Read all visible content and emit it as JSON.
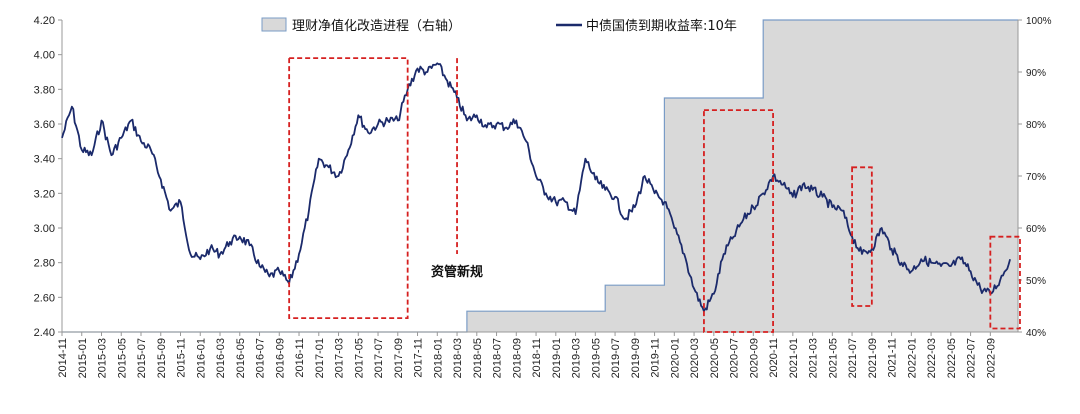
{
  "chart_data": {
    "type": "line",
    "title": "",
    "legend": {
      "placement": "top-center",
      "entries": [
        "理财净值化改造进程（右轴）",
        "中债国债到期收益率:10年"
      ]
    },
    "y_left": {
      "min": 2.4,
      "max": 4.2,
      "ticks": [
        "2.40",
        "2.60",
        "2.80",
        "3.00",
        "3.20",
        "3.40",
        "3.60",
        "3.80",
        "4.00",
        "4.20"
      ]
    },
    "y_right": {
      "min": 40,
      "max": 100,
      "ticks": [
        "40%",
        "50%",
        "60%",
        "70%",
        "80%",
        "90%",
        "100%"
      ]
    },
    "x_ticks": [
      "2014-11",
      "2015-01",
      "2015-03",
      "2015-05",
      "2015-07",
      "2015-09",
      "2015-11",
      "2016-01",
      "2016-03",
      "2016-05",
      "2016-07",
      "2016-09",
      "2016-11",
      "2017-01",
      "2017-03",
      "2017-05",
      "2017-07",
      "2017-09",
      "2017-11",
      "2018-01",
      "2018-03",
      "2018-05",
      "2018-07",
      "2018-09",
      "2018-11",
      "2019-01",
      "2019-03",
      "2019-05",
      "2019-07",
      "2019-09",
      "2019-11",
      "2020-01",
      "2020-03",
      "2020-05",
      "2020-07",
      "2020-09",
      "2020-11",
      "2021-01",
      "2021-03",
      "2021-05",
      "2021-07",
      "2021-09",
      "2021-11",
      "2022-01",
      "2022-03",
      "2022-05",
      "2022-07",
      "2022-09"
    ],
    "series": [
      {
        "name": "中债国债到期收益率:10年",
        "axis": "left",
        "color": "#1b2a6b",
        "points": [
          [
            "2014-11",
            3.52
          ],
          [
            "2014-12",
            3.7
          ],
          [
            "2015-01",
            3.45
          ],
          [
            "2015-02",
            3.42
          ],
          [
            "2015-03",
            3.62
          ],
          [
            "2015-04",
            3.42
          ],
          [
            "2015-05",
            3.52
          ],
          [
            "2015-06",
            3.62
          ],
          [
            "2015-07",
            3.5
          ],
          [
            "2015-08",
            3.45
          ],
          [
            "2015-09",
            3.28
          ],
          [
            "2015-10",
            3.1
          ],
          [
            "2015-11",
            3.15
          ],
          [
            "2015-12",
            2.85
          ],
          [
            "2016-01",
            2.82
          ],
          [
            "2016-02",
            2.88
          ],
          [
            "2016-03",
            2.85
          ],
          [
            "2016-04",
            2.92
          ],
          [
            "2016-05",
            2.95
          ],
          [
            "2016-06",
            2.9
          ],
          [
            "2016-07",
            2.78
          ],
          [
            "2016-08",
            2.72
          ],
          [
            "2016-09",
            2.75
          ],
          [
            "2016-10",
            2.68
          ],
          [
            "2016-11",
            2.85
          ],
          [
            "2016-12",
            3.1
          ],
          [
            "2017-01",
            3.4
          ],
          [
            "2017-02",
            3.35
          ],
          [
            "2017-03",
            3.3
          ],
          [
            "2017-04",
            3.45
          ],
          [
            "2017-05",
            3.65
          ],
          [
            "2017-06",
            3.55
          ],
          [
            "2017-07",
            3.6
          ],
          [
            "2017-08",
            3.62
          ],
          [
            "2017-09",
            3.62
          ],
          [
            "2017-10",
            3.8
          ],
          [
            "2017-11",
            3.92
          ],
          [
            "2017-12",
            3.9
          ],
          [
            "2018-01",
            3.95
          ],
          [
            "2018-02",
            3.85
          ],
          [
            "2018-03",
            3.75
          ],
          [
            "2018-04",
            3.62
          ],
          [
            "2018-05",
            3.65
          ],
          [
            "2018-06",
            3.58
          ],
          [
            "2018-07",
            3.6
          ],
          [
            "2018-08",
            3.58
          ],
          [
            "2018-09",
            3.62
          ],
          [
            "2018-10",
            3.5
          ],
          [
            "2018-11",
            3.3
          ],
          [
            "2018-12",
            3.2
          ],
          [
            "2019-01",
            3.15
          ],
          [
            "2019-02",
            3.15
          ],
          [
            "2019-03",
            3.08
          ],
          [
            "2019-04",
            3.4
          ],
          [
            "2019-05",
            3.28
          ],
          [
            "2019-06",
            3.22
          ],
          [
            "2019-07",
            3.18
          ],
          [
            "2019-08",
            3.05
          ],
          [
            "2019-09",
            3.12
          ],
          [
            "2019-10",
            3.3
          ],
          [
            "2019-11",
            3.2
          ],
          [
            "2019-12",
            3.15
          ],
          [
            "2020-01",
            3.0
          ],
          [
            "2020-02",
            2.85
          ],
          [
            "2020-03",
            2.65
          ],
          [
            "2020-04",
            2.52
          ],
          [
            "2020-05",
            2.62
          ],
          [
            "2020-06",
            2.85
          ],
          [
            "2020-07",
            2.95
          ],
          [
            "2020-08",
            3.05
          ],
          [
            "2020-09",
            3.12
          ],
          [
            "2020-10",
            3.2
          ],
          [
            "2020-11",
            3.3
          ],
          [
            "2020-12",
            3.25
          ],
          [
            "2021-01",
            3.18
          ],
          [
            "2021-02",
            3.25
          ],
          [
            "2021-03",
            3.22
          ],
          [
            "2021-04",
            3.18
          ],
          [
            "2021-05",
            3.12
          ],
          [
            "2021-06",
            3.1
          ],
          [
            "2021-07",
            2.95
          ],
          [
            "2021-08",
            2.85
          ],
          [
            "2021-09",
            2.88
          ],
          [
            "2021-10",
            3.0
          ],
          [
            "2021-11",
            2.88
          ],
          [
            "2021-12",
            2.8
          ],
          [
            "2022-01",
            2.75
          ],
          [
            "2022-02",
            2.82
          ],
          [
            "2022-03",
            2.8
          ],
          [
            "2022-04",
            2.78
          ],
          [
            "2022-05",
            2.78
          ],
          [
            "2022-06",
            2.82
          ],
          [
            "2022-07",
            2.75
          ],
          [
            "2022-08",
            2.65
          ],
          [
            "2022-09",
            2.62
          ],
          [
            "2022-10",
            2.7
          ],
          [
            "2022-11",
            2.82
          ]
        ]
      },
      {
        "name": "理财净值化改造进程（右轴）",
        "axis": "right",
        "type": "area",
        "fill": "#d9d9d9",
        "stroke": "#7a9cc6",
        "steps": [
          [
            "2014-11",
            40
          ],
          [
            "2018-04",
            40
          ],
          [
            "2018-04",
            44
          ],
          [
            "2019-06",
            44
          ],
          [
            "2019-06",
            49
          ],
          [
            "2019-12",
            49
          ],
          [
            "2019-12",
            85
          ],
          [
            "2020-10",
            85
          ],
          [
            "2020-10",
            100
          ],
          [
            "2022-11",
            100
          ]
        ]
      }
    ],
    "annotations": [
      {
        "type": "box",
        "from": "2016-10",
        "to": "2017-10",
        "y_top": 3.98,
        "y_bottom": 2.48
      },
      {
        "type": "line",
        "at": "2018-03",
        "y_top": 3.98,
        "y_bottom": 2.85,
        "label": "资管新规"
      },
      {
        "type": "box",
        "from": "2020-04",
        "to": "2020-11",
        "y_top": 3.68,
        "y_bottom": 2.4
      },
      {
        "type": "box",
        "from": "2021-07",
        "to": "2021-09",
        "y_top": 3.35,
        "y_bottom": 2.55
      },
      {
        "type": "box",
        "from": "2022-09",
        "to": "2022-12",
        "y_top": 2.95,
        "y_bottom": 2.42
      }
    ],
    "grid": false
  }
}
